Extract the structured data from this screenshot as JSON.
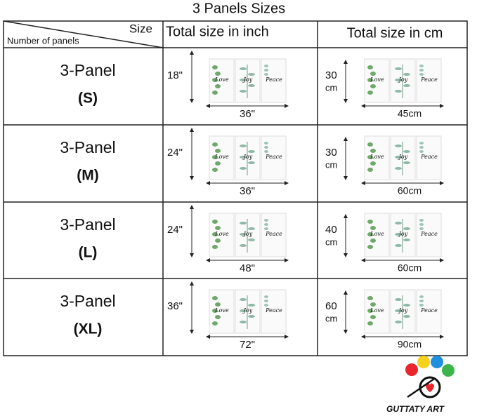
{
  "title": "3 Panels Sizes",
  "header": {
    "corner_top": "Size",
    "corner_bottom": "Number of panels",
    "col_inch": "Total size in inch",
    "col_cm": "Total size in cm"
  },
  "panel_words": [
    "Love",
    "Joy",
    "Peace"
  ],
  "rows": [
    {
      "name": "3-Panel",
      "size": "(S)",
      "inch_height": "18\"",
      "inch_width": "36\"",
      "cm_height": {
        "number": "30",
        "unit": "cm"
      },
      "cm_width": "45cm"
    },
    {
      "name": "3-Panel",
      "size": "(M)",
      "inch_height": "24\"",
      "inch_width": "36\"",
      "cm_height": {
        "number": "30",
        "unit": "cm"
      },
      "cm_width": "60cm"
    },
    {
      "name": "3-Panel",
      "size": "(L)",
      "inch_height": "24\"",
      "inch_width": "48\"",
      "cm_height": {
        "number": "40",
        "unit": "cm"
      },
      "cm_width": "60cm"
    },
    {
      "name": "3-Panel",
      "size": "(XL)",
      "inch_height": "36\"",
      "inch_width": "72\"",
      "cm_height": {
        "number": "60",
        "unit": "cm"
      },
      "cm_width": "90cm"
    }
  ],
  "logo": "GUTTATY ART"
}
